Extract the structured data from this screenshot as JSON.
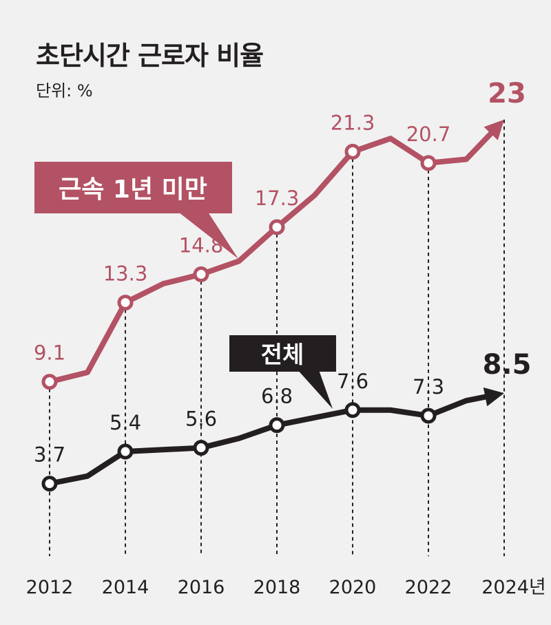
{
  "chart_data": {
    "type": "line",
    "title": "초단시간 근로자 비율",
    "unit_label": "단위: %",
    "x": [
      2012,
      2013,
      2014,
      2015,
      2016,
      2017,
      2018,
      2019,
      2020,
      2021,
      2022,
      2023,
      2024
    ],
    "x_tick_labels": [
      "2012",
      "2014",
      "2016",
      "2018",
      "2020",
      "2022",
      "2024년"
    ],
    "x_ticks": [
      2012,
      2014,
      2016,
      2018,
      2020,
      2022,
      2024
    ],
    "ylim": [
      0,
      25
    ],
    "grid": false,
    "series": [
      {
        "name": "근속 1년 미만",
        "color": "#b35264",
        "values": [
          9.1,
          9.6,
          13.3,
          14.3,
          14.8,
          15.5,
          17.3,
          19.0,
          21.3,
          22.0,
          20.7,
          20.9,
          23
        ],
        "labels": {
          "2012": "9.1",
          "2014": "13.3",
          "2016": "14.8",
          "2018": "17.3",
          "2020": "21.3",
          "2022": "20.7",
          "2024": "23"
        }
      },
      {
        "name": "전체",
        "color": "#231f20",
        "values": [
          3.7,
          4.1,
          5.4,
          5.5,
          5.6,
          6.1,
          6.8,
          7.2,
          7.6,
          7.6,
          7.3,
          8.1,
          8.5
        ],
        "labels": {
          "2012": "3.7",
          "2014": "5.4",
          "2016": "5.6",
          "2018": "6.8",
          "2020": "7.6",
          "2022": "7.3",
          "2024": "8.5"
        }
      }
    ]
  }
}
